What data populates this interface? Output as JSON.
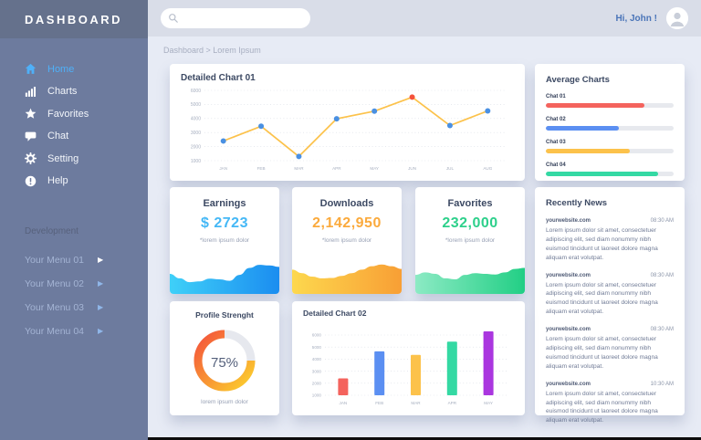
{
  "app": {
    "brand": "DASHBOARD",
    "greeting": "Hi, John !"
  },
  "topbar": {
    "search_placeholder": ""
  },
  "breadcrumb": "Dashboard > Lorem Ipsum",
  "sidebar": {
    "menu": [
      {
        "icon": "home",
        "label": "Home",
        "active": true
      },
      {
        "icon": "bar-chart",
        "label": "Charts",
        "active": false
      },
      {
        "icon": "star",
        "label": "Favorites",
        "active": false
      },
      {
        "icon": "chat-bubble",
        "label": "Chat",
        "active": false
      },
      {
        "icon": "gear",
        "label": "Setting",
        "active": false
      },
      {
        "icon": "help",
        "label": "Help",
        "active": false
      }
    ],
    "section_label": "Development",
    "dev_menu": [
      {
        "label": "Your Menu 01",
        "highlight": true
      },
      {
        "label": "Your Menu 02",
        "highlight": false
      },
      {
        "label": "Your Menu 03",
        "highlight": false
      },
      {
        "label": "Your Menu 04",
        "highlight": false
      }
    ]
  },
  "panels": {
    "chart01_title": "Detailed Chart 01",
    "average_title": "Average Charts",
    "news_title": "Recently News",
    "profile_title": "Profile Strenght",
    "profile_percent": "75%",
    "profile_note": "lorem ipsum dolor",
    "chart02_title": "Detailed Chart 02"
  },
  "stats": [
    {
      "title": "Earnings",
      "value": "$ 2723",
      "note": "*lorem ipsum dolor",
      "value_color": "#45b8f6",
      "trend_id": "earnings-trend"
    },
    {
      "title": "Downloads",
      "value": "2,142,950",
      "note": "*lorem ipsum dolor",
      "value_color": "#fbaa3c",
      "trend_id": "downloads-trend"
    },
    {
      "title": "Favorites",
      "value": "232,000",
      "note": "*lorem ipsum dolor",
      "value_color": "#2dd08b",
      "trend_id": "favorites-trend"
    }
  ],
  "news_items": [
    {
      "source": "yourwebsite.com",
      "time": "08:30 AM",
      "body": "Lorem ipsum dolor sit amet, consectetuer adipiscing elit, sed diam nonummy nibh euismod tincidunt ut laoreet dolore magna aliquam erat volutpat."
    },
    {
      "source": "yourwebsite.com",
      "time": "08:30 AM",
      "body": "Lorem ipsum dolor sit amet, consectetuer adipiscing elit, sed diam nonummy nibh euismod tincidunt ut laoreet dolore magna aliquam erat volutpat."
    },
    {
      "source": "yourwebsite.com",
      "time": "08:30 AM",
      "body": "Lorem ipsum dolor sit amet, consectetuer adipiscing elit, sed diam nonummy nibh euismod tincidunt ut laoreet dolore magna aliquam erat volutpat."
    },
    {
      "source": "yourwebsite.com",
      "time": "10:30 AM",
      "body": "Lorem ipsum dolor sit amet, consectetuer adipiscing elit, sed diam nonummy nibh euismod tincidunt ut laoreet dolore magna aliquam erat volutpat."
    }
  ],
  "chart_data": [
    {
      "id": "detailed-chart-01",
      "type": "line",
      "title": "Detailed Chart 01",
      "x": [
        "JAN",
        "FEB",
        "MAR",
        "APR",
        "MAY",
        "JUN",
        "JUL",
        "AUG"
      ],
      "values": [
        2400,
        3450,
        1300,
        3980,
        4520,
        5520,
        3500,
        4540
      ],
      "ylim": [
        1000,
        6000
      ],
      "yticks": [
        1000,
        2000,
        3000,
        4000,
        5000,
        6000
      ],
      "grid": true,
      "legend": "none",
      "line_color": "#fcc24b",
      "point_color": "#4a90e2",
      "highlight_index": 5,
      "highlight_color": "#f4523b"
    },
    {
      "id": "detailed-chart-02",
      "type": "bar",
      "title": "Detailed Chart 02",
      "categories": [
        "JAN",
        "FEB",
        "MAR",
        "APR",
        "MAY"
      ],
      "values": [
        2400,
        4650,
        4350,
        5450,
        6300
      ],
      "ylim": [
        1000,
        6000
      ],
      "yticks": [
        1000,
        2000,
        3000,
        4000,
        5000,
        6000
      ],
      "grid": true,
      "bar_colors": [
        "#f4635d",
        "#5b8ff2",
        "#fcc24b",
        "#34d9a3",
        "#aa36df"
      ]
    },
    {
      "id": "average-charts",
      "type": "bar",
      "subtype": "horizontal-progress",
      "title": "Average Charts",
      "categories": [
        "Chat 01",
        "Chat 02",
        "Chat 03",
        "Chat 04"
      ],
      "values": [
        77,
        57,
        66,
        88
      ],
      "xlim": [
        0,
        100
      ],
      "colors": [
        "#f4635d",
        "#5b8ff2",
        "#fcc24b",
        "#34d9a3"
      ],
      "track_color": "#e7e9ee"
    },
    {
      "id": "profile-strength",
      "type": "pie",
      "subtype": "donut",
      "title": "Profile Strenght",
      "labels": [
        "strength",
        "remaining"
      ],
      "values": [
        75,
        25
      ],
      "center_label": "75%",
      "arc_gradient": [
        "#f4523b",
        "#fcd12d"
      ],
      "rest_color": "#e6e8ee"
    },
    {
      "id": "earnings-trend",
      "type": "area",
      "values": [
        58,
        45,
        34,
        36,
        44,
        42,
        38,
        55,
        75,
        84,
        82,
        78
      ],
      "gradient": [
        "#3fd0f8",
        "#1b8df0"
      ]
    },
    {
      "id": "downloads-trend",
      "type": "area",
      "values": [
        70,
        60,
        50,
        45,
        46,
        52,
        60,
        70,
        80,
        85,
        80,
        72
      ],
      "gradient": [
        "#fdd84e",
        "#f89f35"
      ]
    },
    {
      "id": "favorites-trend",
      "type": "area",
      "values": [
        55,
        62,
        58,
        45,
        42,
        55,
        60,
        58,
        56,
        62,
        72,
        75
      ],
      "gradient": [
        "#8ceac4",
        "#22cf85"
      ]
    }
  ]
}
